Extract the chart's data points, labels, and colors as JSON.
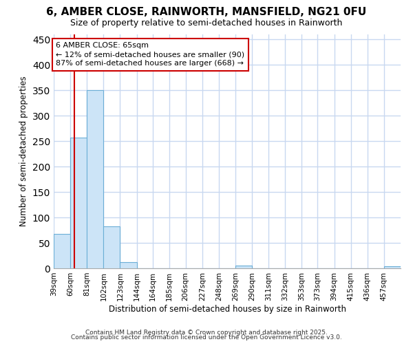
{
  "title": "6, AMBER CLOSE, RAINWORTH, MANSFIELD, NG21 0FU",
  "subtitle": "Size of property relative to semi-detached houses in Rainworth",
  "xlabel": "Distribution of semi-detached houses by size in Rainworth",
  "ylabel": "Number of semi-detached properties",
  "bins": [
    "39sqm",
    "60sqm",
    "81sqm",
    "102sqm",
    "123sqm",
    "144sqm",
    "164sqm",
    "185sqm",
    "206sqm",
    "227sqm",
    "248sqm",
    "269sqm",
    "290sqm",
    "311sqm",
    "332sqm",
    "353sqm",
    "373sqm",
    "394sqm",
    "415sqm",
    "436sqm",
    "457sqm"
  ],
  "bin_edges": [
    39,
    60,
    81,
    102,
    123,
    144,
    164,
    185,
    206,
    227,
    248,
    269,
    290,
    311,
    332,
    353,
    373,
    394,
    415,
    436,
    457
  ],
  "values": [
    68,
    257,
    350,
    82,
    12,
    0,
    0,
    0,
    0,
    0,
    0,
    5,
    0,
    0,
    0,
    0,
    0,
    0,
    0,
    0,
    4
  ],
  "bar_color": "#cce4f7",
  "bar_edge_color": "#6baed6",
  "property_size": 65,
  "property_line_color": "#cc0000",
  "annotation_line1": "6 AMBER CLOSE: 65sqm",
  "annotation_line2": "← 12% of semi-detached houses are smaller (90)",
  "annotation_line3": "87% of semi-detached houses are larger (668) →",
  "annotation_box_color": "#ffffff",
  "annotation_box_edge_color": "#cc0000",
  "ylim": [
    0,
    460
  ],
  "yticks": [
    0,
    50,
    100,
    150,
    200,
    250,
    300,
    350,
    400,
    450
  ],
  "background_color": "#ffffff",
  "plot_bg_color": "#ffffff",
  "grid_color": "#c8d8f0",
  "footer_line1": "Contains HM Land Registry data © Crown copyright and database right 2025.",
  "footer_line2": "Contains public sector information licensed under the Open Government Licence v3.0."
}
